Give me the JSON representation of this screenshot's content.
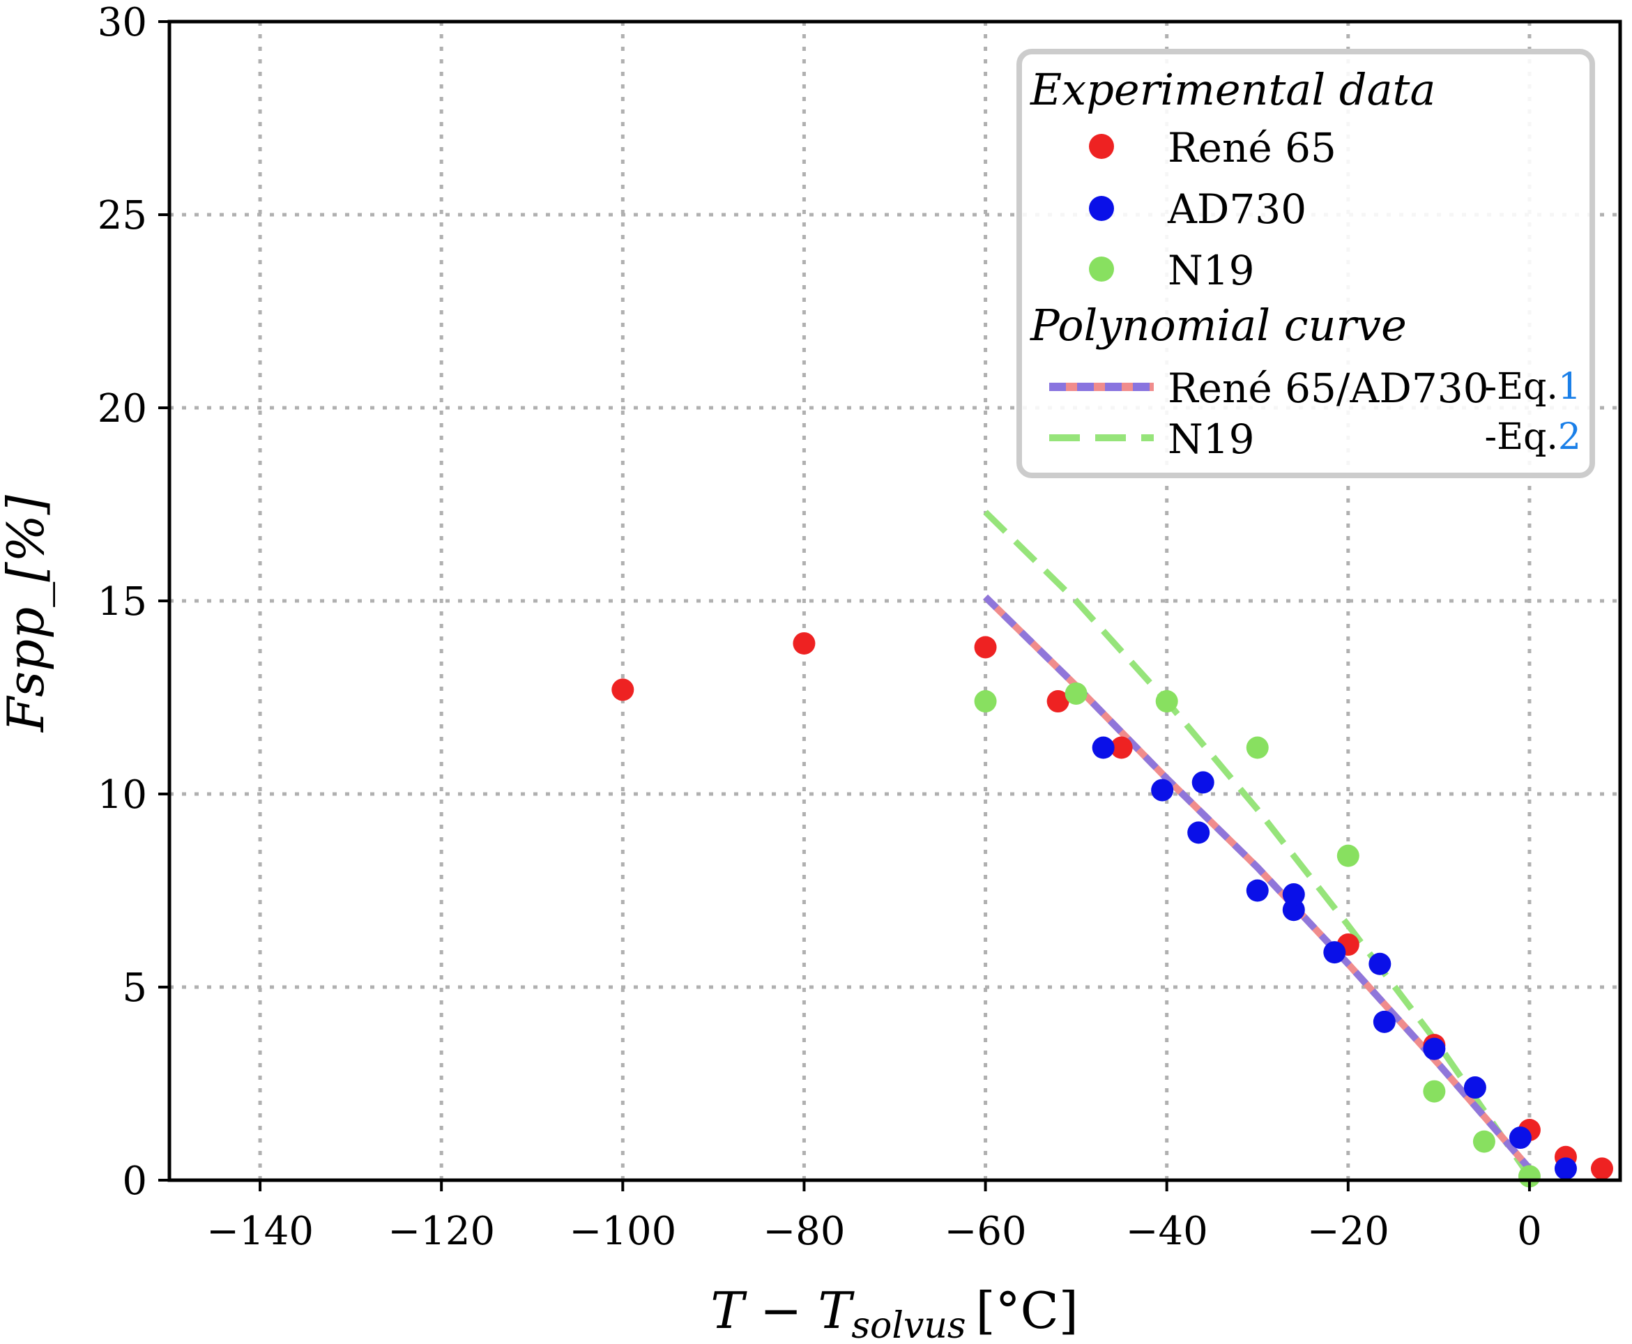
{
  "chart_data": {
    "type": "scatter",
    "title": "",
    "xlabel": "T − T_solvus [°C]",
    "xlabel_parts": {
      "main": "T − T",
      "subscript": "solvus",
      "unit": "[°C]"
    },
    "ylabel": "Fspp_[%]",
    "xlim": [
      -150,
      10
    ],
    "ylim": [
      0,
      30
    ],
    "xticks": [
      -140,
      -120,
      -100,
      -80,
      -60,
      -40,
      -20,
      0
    ],
    "xtick_labels": [
      "−140",
      "−120",
      "−100",
      "−80",
      "−60",
      "−40",
      "−20",
      "0"
    ],
    "yticks": [
      0,
      5,
      10,
      15,
      20,
      25,
      30
    ],
    "ytick_labels": [
      "0",
      "5",
      "10",
      "15",
      "20",
      "25",
      "30"
    ],
    "grid": true,
    "legend_position": "top-right",
    "legend": {
      "experimental_title": "Experimental data",
      "polynomial_title": "Polynomial curve",
      "eq_prefix": "-Eq.",
      "eq1_number": "1",
      "eq2_number": "2"
    },
    "colors": {
      "rene65": "#ee2222",
      "ad730": "#0a10e8",
      "n19": "#88e060",
      "rene_ad_curve_a": "#f08c8c",
      "rene_ad_curve_b": "#7e72e8",
      "n19_curve": "#96e47a",
      "eq_ref": "#1a7fe8"
    },
    "series": [
      {
        "name": "René 65",
        "kind": "points",
        "color_key": "rene65",
        "x": [
          -100,
          -80,
          -60,
          -52,
          -45,
          -20,
          -10.5,
          0,
          4,
          8
        ],
        "y": [
          12.7,
          13.9,
          13.8,
          12.4,
          11.2,
          6.1,
          3.5,
          1.3,
          0.6,
          0.3
        ]
      },
      {
        "name": "AD730",
        "kind": "points",
        "color_key": "ad730",
        "x": [
          -47,
          -40.5,
          -36.5,
          -36,
          -30,
          -26,
          -26,
          -21.5,
          -16.5,
          -16,
          -10.5,
          -6,
          -1,
          4
        ],
        "y": [
          11.2,
          10.1,
          9.0,
          10.3,
          7.5,
          7.0,
          7.4,
          5.9,
          5.6,
          4.1,
          3.4,
          2.4,
          1.1,
          0.3
        ]
      },
      {
        "name": "N19",
        "kind": "points",
        "color_key": "n19",
        "x": [
          -60,
          -50,
          -40,
          -30,
          -20,
          -10.5,
          -5,
          0
        ],
        "y": [
          12.4,
          12.6,
          12.4,
          11.2,
          8.4,
          2.3,
          1.0,
          0.1
        ]
      },
      {
        "name": "René 65/AD730",
        "kind": "line",
        "eq": "1",
        "x": [
          -60,
          -50,
          -40,
          -30,
          -20,
          -10,
          0
        ],
        "y": [
          15.1,
          12.8,
          10.4,
          8.1,
          5.6,
          3.0,
          0.3
        ]
      },
      {
        "name": "N19",
        "kind": "line",
        "eq": "2",
        "x": [
          -60,
          -50,
          -40,
          -30,
          -20,
          -10,
          0
        ],
        "y": [
          17.3,
          15.0,
          12.4,
          9.6,
          6.6,
          3.5,
          0.1
        ]
      }
    ]
  }
}
